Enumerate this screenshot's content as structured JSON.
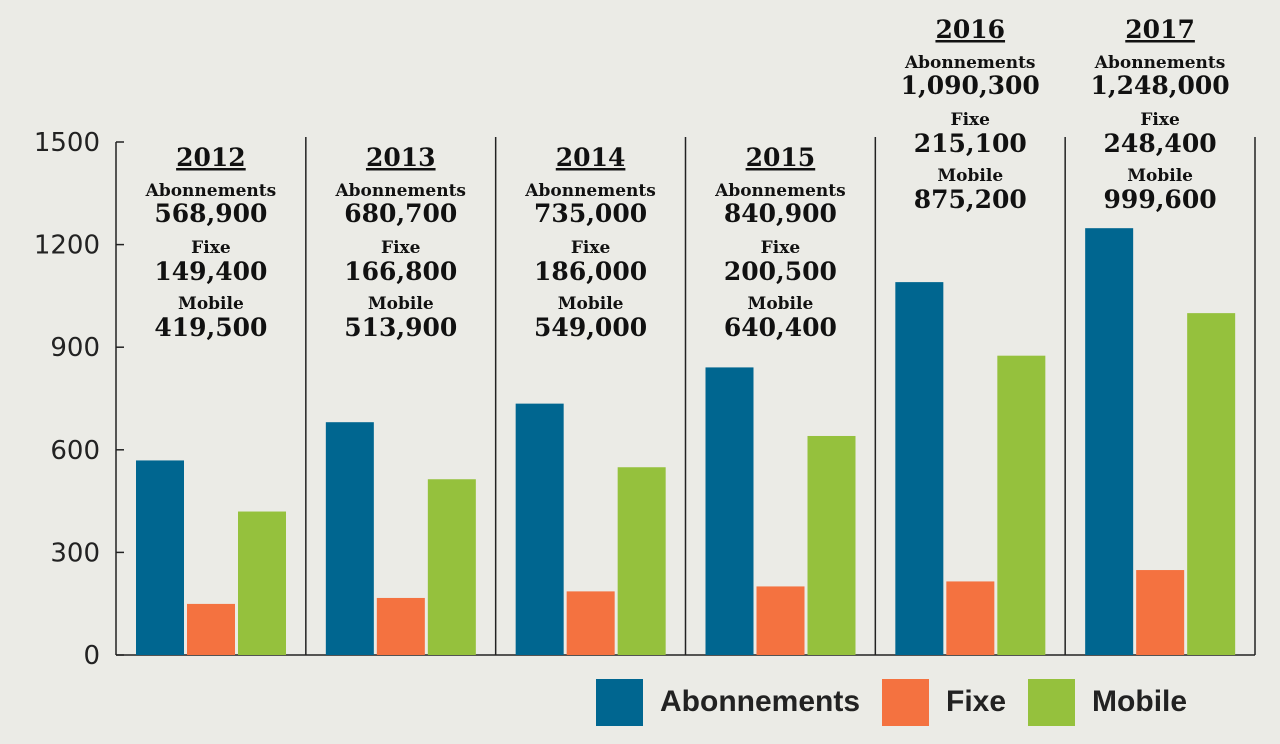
{
  "chart_data": {
    "type": "bar",
    "categories": [
      "2012",
      "2013",
      "2014",
      "2015",
      "2016",
      "2017"
    ],
    "series": [
      {
        "name": "Abonnements",
        "color": "#006690",
        "values": [
          568.9,
          680.7,
          735.0,
          840.9,
          1090.3,
          1248.0
        ],
        "labels": [
          "568,900",
          "680,700",
          "735,000",
          "840,900",
          "1,090,300",
          "1,248,000"
        ]
      },
      {
        "name": "Fixe",
        "color": "#f47240",
        "values": [
          149.4,
          166.8,
          186.0,
          200.5,
          215.1,
          248.4
        ],
        "labels": [
          "149,400",
          "166,800",
          "186,000",
          "200,500",
          "215,100",
          "248,400"
        ]
      },
      {
        "name": "Mobile",
        "color": "#95c13d",
        "values": [
          419.5,
          513.9,
          549.0,
          640.4,
          875.2,
          999.6
        ],
        "labels": [
          "419,500",
          "513,900",
          "549,000",
          "640,400",
          "875,200",
          "999,600"
        ]
      }
    ],
    "ylim": [
      0,
      1500
    ],
    "yticks": [
      0,
      300,
      600,
      900,
      1200,
      1500
    ],
    "title": "",
    "xlabel": "",
    "ylabel": ""
  },
  "legend": {
    "items": [
      {
        "label": "Abonnements",
        "color": "#006690"
      },
      {
        "label": "Fixe",
        "color": "#f47240"
      },
      {
        "label": "Mobile",
        "color": "#95c13d"
      }
    ]
  }
}
